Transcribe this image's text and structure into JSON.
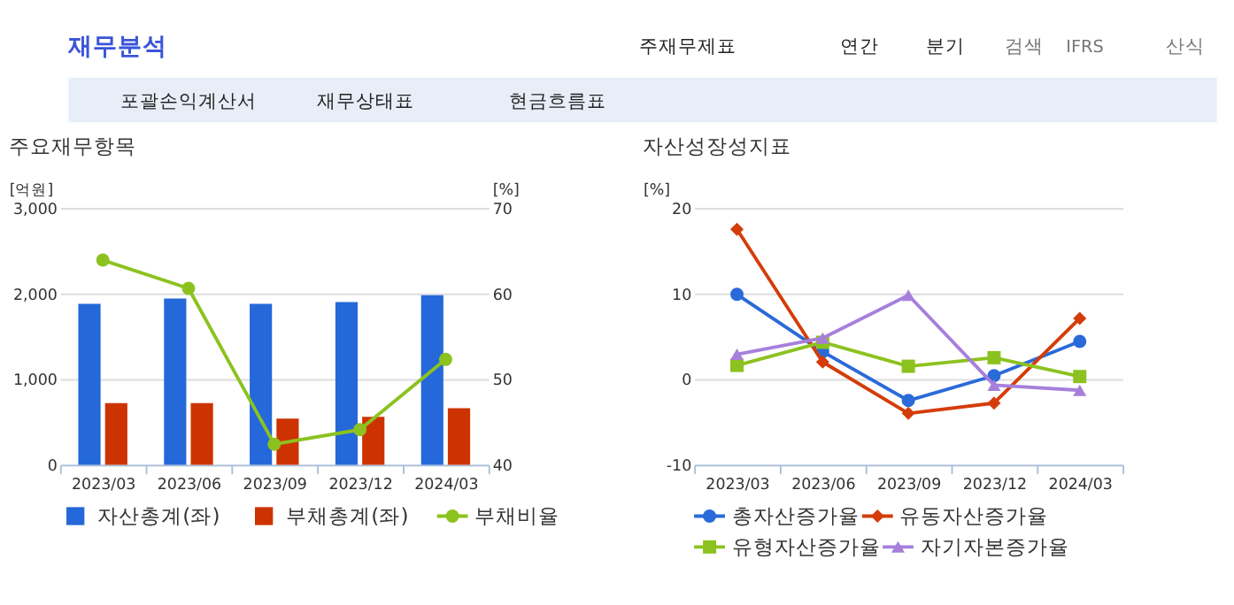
{
  "chart_data": [
    {
      "type": "bar",
      "title": "주요재무항목",
      "ylabel": "[억원]",
      "y2label": "[%]",
      "annotations": [
        "재무분석",
        "주재무제표",
        "연간",
        "분기",
        "검색",
        "IFRS",
        "산식",
        "포괄손익계산서",
        "재무상태표",
        "현금흐름표"
      ],
      "categories": [
        "2023/03",
        "2023/06",
        "2023/09",
        "2023/12",
        "2024/03"
      ],
      "series": [
        {
          "name": "자산총계(좌)",
          "type": "bar",
          "color": "#2468d9",
          "values": [
            1880,
            1940,
            1880,
            1900,
            1980
          ]
        },
        {
          "name": "부채총계(좌)",
          "type": "bar",
          "color": "#cc3300",
          "values": [
            720,
            720,
            540,
            560,
            660
          ]
        },
        {
          "name": "부채비율",
          "type": "line",
          "axis": "y2",
          "marker": "circle",
          "color": "#8cc21f",
          "values": [
            63.9,
            60.6,
            42.4,
            44.1,
            52.3
          ]
        }
      ],
      "ylim": [
        0,
        3000
      ],
      "yticks": [
        0,
        {
          "value": 1000,
          "label": "1,000"
        },
        {
          "value": 2000,
          "label": "2,000"
        },
        {
          "value": 3000,
          "label": "3,000"
        }
      ],
      "y2lim": [
        40,
        70
      ],
      "y2ticks": [
        40,
        50,
        60,
        70
      ],
      "grid": "y",
      "legend": "bottom"
    },
    {
      "type": "line",
      "title": "자산성장성지표",
      "ylabel": "[%]",
      "categories": [
        "2023/03",
        "2023/06",
        "2023/09",
        "2023/12",
        "2024/03"
      ],
      "series": [
        {
          "name": "총자산증가율",
          "marker": "circle",
          "color": "#2a6ad9",
          "values": [
            9.9,
            3.2,
            -2.5,
            0.4,
            4.4
          ]
        },
        {
          "name": "유동자산증가율",
          "marker": "diamond",
          "color": "#d43d0a",
          "values": [
            17.5,
            2.0,
            -4.0,
            -2.8,
            7.1
          ]
        },
        {
          "name": "유형자산증가율",
          "marker": "square",
          "color": "#8cc21f",
          "values": [
            1.6,
            4.3,
            1.5,
            2.5,
            0.3
          ]
        },
        {
          "name": "자기자본증가율",
          "marker": "triangle",
          "color": "#a77fdb",
          "values": [
            2.9,
            4.8,
            9.8,
            -0.7,
            -1.3
          ]
        }
      ],
      "ylim": [
        -10,
        20
      ],
      "yticks": [
        -10,
        0,
        10,
        20
      ],
      "grid": "y",
      "legend": "bottom"
    }
  ]
}
